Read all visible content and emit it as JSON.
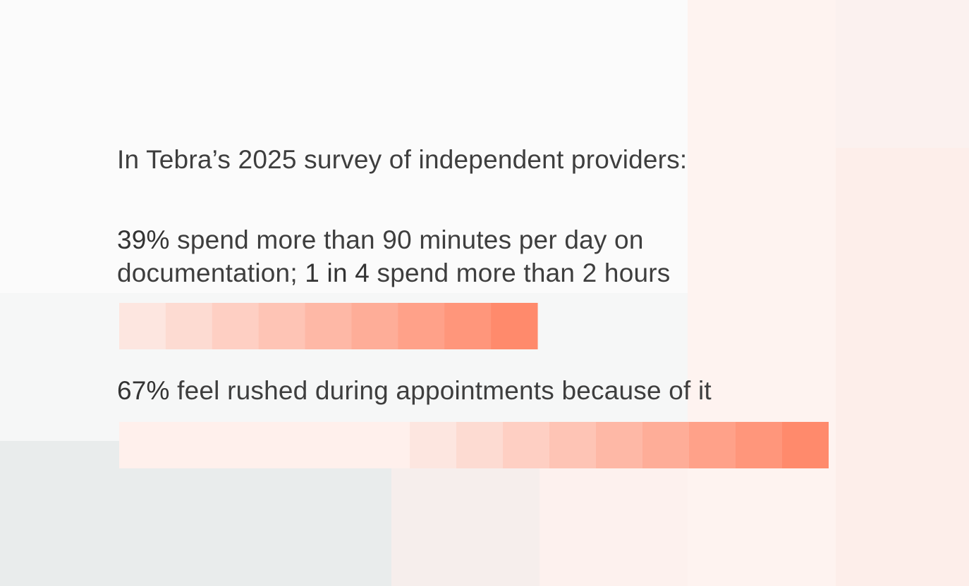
{
  "heading": "In Tebra’s 2025 survey of independent providers:",
  "stats": [
    {
      "highlight": "39%",
      "text1": " spend more than 90 minutes per day on documentation; ",
      "highlight2": "1 in 4",
      "text2": " spend more than 2 hours"
    },
    {
      "highlight": "67%",
      "text1": " feel rushed during appointments because of it"
    }
  ],
  "chart_data": {
    "type": "bar",
    "categories": [
      "spend more than 90 minutes per day on documentation",
      "feel rushed during appointments because of it"
    ],
    "values": [
      39,
      67
    ],
    "unit": "%",
    "colors": {
      "accent": "#ff8a6c",
      "light": "#fde6e0",
      "track": "#fff0ec"
    }
  }
}
